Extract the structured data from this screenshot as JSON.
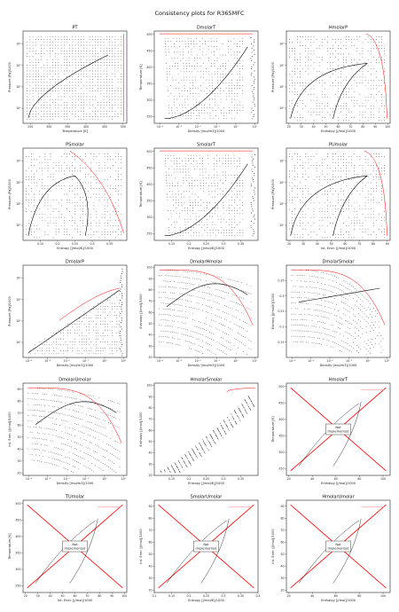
{
  "suptitle": "Consistency plots for R365MFC",
  "not_implemented_label": [
    "Not",
    "Implemented"
  ],
  "colors": {
    "data": "#000000",
    "boundary": "#ff0000",
    "saturation": "#000000"
  },
  "chart_data": [
    {
      "title": "PT",
      "type": "scatter",
      "xlabel": "Temperature [K]",
      "ylabel": "Pressure [Pa]/1000",
      "xlim": [
        230,
        510
      ],
      "ylim": [
        0.2,
        4000
      ],
      "yscale": "log",
      "xticks": [
        250,
        300,
        350,
        400,
        450,
        500
      ],
      "yticks": [
        1,
        10,
        100,
        1000
      ],
      "ytick_labels": [
        "10⁰",
        "10¹",
        "10²",
        "10³"
      ],
      "not_implemented": false
    },
    {
      "title": "DmolarT",
      "type": "scatter",
      "xlabel": "Density [mol/m3]/1000",
      "ylabel": "Temperature [K]",
      "xlim": [
        5e-05,
        15
      ],
      "ylim": [
        230,
        510
      ],
      "xscale": "log",
      "xticks": [
        0.0001,
        0.001,
        0.01,
        0.1,
        1,
        10
      ],
      "xtick_labels": [
        "10⁻⁴",
        "10⁻³",
        "10⁻²",
        "10⁻¹",
        "10⁰",
        "10¹"
      ],
      "yticks": [
        250,
        300,
        350,
        400,
        450,
        500
      ],
      "not_implemented": false
    },
    {
      "title": "HmolarP",
      "type": "scatter",
      "xlabel": "Enthalpy [J/mol]/1000",
      "ylabel": "Pressure [Pa]/1000",
      "xlim": [
        18,
        102
      ],
      "ylim": [
        0.2,
        4000
      ],
      "yscale": "log",
      "xticks": [
        20,
        30,
        40,
        50,
        60,
        70,
        80,
        90,
        100
      ],
      "yticks": [
        1,
        10,
        100,
        1000
      ],
      "ytick_labels": [
        "10⁰",
        "10¹",
        "10²",
        "10³"
      ],
      "not_implemented": false
    },
    {
      "title": "PSmolar",
      "type": "scatter",
      "xlabel": "Entropy [J/mol/K]/1000",
      "ylabel": "Pressure [Pa]/1000",
      "xlim": [
        0.1,
        0.4
      ],
      "ylim": [
        0.2,
        4000
      ],
      "yscale": "log",
      "xticks": [
        0.15,
        0.2,
        0.25,
        0.3,
        0.35
      ],
      "yticks": [
        1,
        10,
        100,
        1000
      ],
      "ytick_labels": [
        "10⁰",
        "10¹",
        "10²",
        "10³"
      ],
      "not_implemented": false
    },
    {
      "title": "SmolarT",
      "type": "scatter",
      "xlabel": "Entropy [J/mol/K]/1000",
      "ylabel": "Temperature [K]",
      "xlim": [
        0.1,
        0.4
      ],
      "ylim": [
        230,
        510
      ],
      "xticks": [
        0.15,
        0.2,
        0.25,
        0.3,
        0.35
      ],
      "yticks": [
        250,
        300,
        350,
        400,
        450,
        500
      ],
      "not_implemented": false
    },
    {
      "title": "PUmolar",
      "type": "scatter",
      "xlabel": "Int. Ener. [J/mol]/1000",
      "ylabel": "Pressure [Pa]/1000",
      "xlim": [
        18,
        92
      ],
      "ylim": [
        0.2,
        4000
      ],
      "yscale": "log",
      "xticks": [
        20,
        30,
        40,
        50,
        60,
        70,
        80,
        90
      ],
      "yticks": [
        1,
        10,
        100,
        1000
      ],
      "ytick_labels": [
        "10⁰",
        "10¹",
        "10²",
        "10³"
      ],
      "not_implemented": false
    },
    {
      "title": "DmolarP",
      "type": "scatter",
      "xlabel": "Density [mol/m3]/1000",
      "ylabel": "Pressure [Pa]/1000",
      "xlim": [
        5e-05,
        15
      ],
      "ylim": [
        0.2,
        4000
      ],
      "xscale": "log",
      "yscale": "log",
      "xticks": [
        0.0001,
        0.001,
        0.01,
        0.1,
        1,
        10
      ],
      "xtick_labels": [
        "10⁻⁴",
        "10⁻³",
        "10⁻²",
        "10⁻¹",
        "10⁰",
        "10¹"
      ],
      "yticks": [
        1,
        10,
        100,
        1000
      ],
      "ytick_labels": [
        "10⁰",
        "10¹",
        "10²",
        "10³"
      ],
      "not_implemented": false
    },
    {
      "title": "DmolarHmolar",
      "type": "scatter",
      "xlabel": "Density [mol/m3]/1000",
      "ylabel": "Enthalpy [J/mol]/1000",
      "xlim": [
        5e-05,
        15
      ],
      "ylim": [
        20,
        102
      ],
      "xscale": "log",
      "xticks": [
        0.0001,
        0.001,
        0.01,
        0.1,
        1,
        10
      ],
      "xtick_labels": [
        "10⁻⁴",
        "10⁻³",
        "10⁻²",
        "10⁻¹",
        "10⁰",
        "10¹"
      ],
      "yticks": [
        20,
        30,
        40,
        50,
        60,
        70,
        80,
        90,
        100
      ],
      "not_implemented": false
    },
    {
      "title": "DmolarSmolar",
      "type": "scatter",
      "xlabel": "Density [mol/m3]/1000",
      "ylabel": "Entropy [J/mol/K]/1000",
      "xlim": [
        5e-05,
        15
      ],
      "ylim": [
        0.1,
        0.4
      ],
      "xscale": "log",
      "xticks": [
        0.0001,
        0.001,
        0.01,
        0.1,
        1,
        10
      ],
      "xtick_labels": [
        "10⁻⁴",
        "10⁻³",
        "10⁻²",
        "10⁻¹",
        "10⁰",
        "10¹"
      ],
      "yticks": [
        0.15,
        0.2,
        0.25,
        0.3,
        0.35
      ],
      "not_implemented": false
    },
    {
      "title": "DmolarUmolar",
      "type": "scatter",
      "xlabel": "Density [mol/m3]/1000",
      "ylabel": "Int. Ener. [J/mol]/1000",
      "xlim": [
        5e-05,
        15
      ],
      "ylim": [
        18,
        95
      ],
      "xscale": "log",
      "xticks": [
        0.0001,
        0.001,
        0.01,
        0.1,
        1,
        10
      ],
      "xtick_labels": [
        "10⁻⁴",
        "10⁻³",
        "10⁻²",
        "10⁻¹",
        "10⁰",
        "10¹"
      ],
      "yticks": [
        20,
        30,
        40,
        50,
        60,
        70,
        80,
        90
      ],
      "not_implemented": false
    },
    {
      "title": "HmolarSmolar",
      "type": "scatter",
      "xlabel": "Entropy [J/mol/K]/1000",
      "ylabel": "Enthalpy [J/mol]/1000",
      "xlim": [
        0.1,
        0.4
      ],
      "ylim": [
        20,
        102
      ],
      "xticks": [
        0.15,
        0.2,
        0.25,
        0.3,
        0.35
      ],
      "yticks": [
        20,
        30,
        40,
        50,
        60,
        70,
        80,
        90,
        100
      ],
      "not_implemented": false
    },
    {
      "title": "HmolarT",
      "type": "line",
      "xlabel": "Enthalpy [J/mol]/1000",
      "ylabel": "Temperature [K]",
      "xlim": [
        18,
        106
      ],
      "ylim": [
        230,
        510
      ],
      "xticks": [
        20,
        40,
        60,
        80,
        100
      ],
      "yticks": [
        250,
        300,
        350,
        400,
        450,
        500
      ],
      "not_implemented": true
    },
    {
      "title": "TUmolar",
      "type": "line",
      "xlabel": "Int. Ener. [J/mol]/1000",
      "ylabel": "Temperature [K]",
      "xlim": [
        18,
        102
      ],
      "ylim": [
        230,
        510
      ],
      "xticks": [
        20,
        30,
        40,
        50,
        60,
        70,
        80,
        90,
        100
      ],
      "yticks": [
        250,
        300,
        350,
        400,
        450,
        500
      ],
      "not_implemented": true
    },
    {
      "title": "SmolarUmolar",
      "type": "line",
      "xlabel": "Entropy [J/mol/K]/1000",
      "ylabel": "Int. Ener. [J/mol]/1000",
      "xlim": [
        0.1,
        0.4
      ],
      "ylim": [
        18,
        95
      ],
      "xticks": [
        0.1,
        0.15,
        0.2,
        0.25,
        0.3,
        0.35,
        0.4
      ],
      "yticks": [
        20,
        30,
        40,
        50,
        60,
        70,
        80,
        90
      ],
      "not_implemented": true
    },
    {
      "title": "HmolarUmolar",
      "type": "line",
      "xlabel": "Enthalpy [J/mol]/1000",
      "ylabel": "Int. Ener. [J/mol]/1000",
      "xlim": [
        18,
        106
      ],
      "ylim": [
        18,
        95
      ],
      "xticks": [
        20,
        40,
        60,
        80,
        100
      ],
      "yticks": [
        20,
        30,
        40,
        50,
        60,
        70,
        80,
        90
      ],
      "not_implemented": true
    }
  ]
}
